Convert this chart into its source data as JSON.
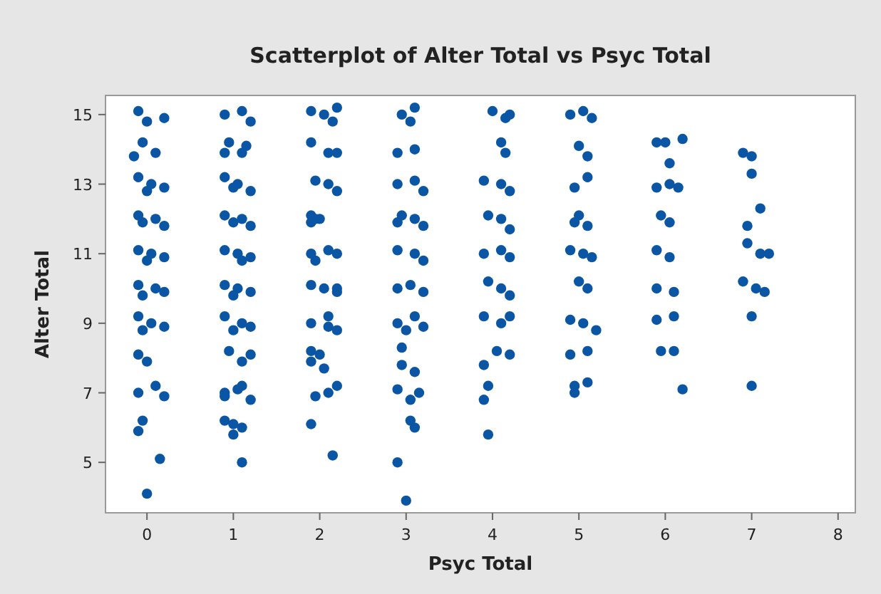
{
  "chart_data": {
    "type": "scatter",
    "title": "Scatterplot of Alter Total vs Psyc Total",
    "xlabel": "Psyc Total",
    "ylabel": "Alter Total",
    "xlim": [
      -0.48,
      8.2
    ],
    "ylim": [
      3.55,
      15.55
    ],
    "xticks": [
      0,
      1,
      2,
      3,
      4,
      5,
      6,
      7,
      8
    ],
    "yticks": [
      5,
      7,
      9,
      11,
      13,
      15
    ],
    "grid": false,
    "marker": "circle",
    "series": [
      {
        "color": "#0b56a4",
        "x": [
          -0.1,
          0.0,
          0.2,
          -0.05,
          0.1,
          -0.15,
          -0.1,
          0.05,
          0.2,
          0.0,
          -0.1,
          0.1,
          0.2,
          -0.05,
          -0.1,
          0.05,
          0.2,
          0.0,
          -0.1,
          0.1,
          0.2,
          -0.05,
          -0.1,
          0.05,
          0.2,
          -0.05,
          -0.1,
          0.0,
          -0.1,
          0.1,
          0.2,
          -0.05,
          -0.1,
          0.15,
          0.0,
          0.9,
          1.1,
          1.2,
          0.95,
          1.1,
          0.9,
          1.15,
          0.9,
          1.05,
          1.2,
          1.0,
          0.9,
          1.1,
          1.2,
          1.0,
          0.9,
          1.05,
          1.2,
          1.1,
          0.9,
          1.05,
          1.2,
          1.0,
          0.9,
          1.1,
          1.2,
          1.0,
          0.95,
          1.1,
          1.2,
          0.9,
          1.1,
          0.9,
          1.2,
          1.0,
          1.1,
          0.9,
          1.0,
          1.1,
          1.05,
          1.9,
          2.05,
          2.2,
          2.15,
          1.9,
          2.1,
          1.95,
          2.1,
          2.2,
          1.9,
          2.0,
          1.9,
          2.1,
          2.2,
          1.95,
          1.9,
          2.05,
          2.2,
          2.1,
          1.9,
          2.1,
          2.2,
          2.0,
          1.9,
          2.05,
          2.2,
          1.95,
          1.9,
          2.15,
          2.1,
          1.9,
          2.2,
          1.95,
          1.9,
          2.2,
          2.95,
          3.1,
          3.05,
          2.9,
          3.1,
          2.9,
          3.1,
          3.2,
          2.95,
          3.1,
          3.2,
          2.9,
          2.9,
          3.1,
          3.2,
          2.9,
          3.05,
          3.2,
          2.9,
          3.1,
          3.2,
          3.0,
          2.95,
          2.95,
          3.1,
          2.9,
          3.05,
          3.05,
          3.1,
          3.15,
          2.9,
          3.0,
          4.0,
          4.15,
          4.2,
          4.1,
          4.15,
          3.9,
          4.1,
          4.2,
          3.95,
          4.1,
          4.2,
          3.9,
          4.1,
          4.2,
          3.95,
          4.1,
          4.2,
          3.9,
          4.1,
          4.2,
          4.05,
          4.2,
          3.9,
          3.95,
          3.9,
          3.95,
          4.9,
          5.05,
          5.15,
          5.0,
          5.1,
          5.1,
          4.95,
          5.0,
          5.1,
          4.95,
          4.9,
          5.05,
          5.15,
          5.0,
          5.1,
          4.9,
          5.05,
          5.2,
          4.9,
          5.1,
          4.95,
          5.1,
          4.95,
          5.9,
          6.0,
          6.2,
          6.05,
          5.9,
          6.05,
          6.15,
          5.95,
          6.05,
          5.9,
          6.05,
          5.9,
          6.1,
          5.9,
          6.1,
          5.95,
          6.1,
          6.2,
          6.9,
          7.0,
          7.0,
          7.1,
          6.95,
          6.95,
          7.1,
          7.2,
          6.9,
          7.05,
          7.15,
          7.0,
          7.0
        ],
        "values": [
          15.1,
          14.8,
          14.9,
          14.2,
          13.9,
          13.8,
          13.2,
          13.0,
          12.9,
          12.8,
          12.1,
          12.0,
          11.8,
          11.9,
          11.1,
          11.0,
          10.9,
          10.8,
          10.1,
          10.0,
          9.9,
          9.8,
          9.2,
          9.0,
          8.9,
          8.8,
          8.1,
          7.9,
          7.0,
          7.2,
          6.9,
          6.2,
          5.9,
          5.1,
          4.1,
          15.0,
          15.1,
          14.8,
          14.2,
          13.9,
          13.9,
          14.1,
          13.2,
          13.0,
          12.8,
          12.9,
          12.1,
          12.0,
          11.8,
          11.9,
          11.1,
          11.0,
          10.9,
          10.8,
          10.1,
          10.0,
          9.9,
          9.8,
          9.2,
          9.0,
          8.9,
          8.8,
          8.2,
          7.9,
          8.1,
          7.0,
          7.2,
          6.9,
          6.8,
          6.1,
          6.0,
          6.2,
          5.8,
          5.0,
          7.1,
          15.1,
          15.0,
          15.2,
          14.8,
          14.2,
          13.9,
          13.1,
          13.0,
          12.8,
          12.1,
          12.0,
          11.9,
          11.1,
          11.0,
          10.8,
          10.1,
          10.0,
          9.9,
          9.2,
          9.0,
          8.9,
          8.8,
          8.1,
          7.9,
          7.7,
          7.2,
          6.9,
          6.1,
          5.2,
          7.0,
          8.2,
          13.9,
          12.0,
          11.0,
          10.0,
          15.0,
          15.2,
          14.8,
          13.9,
          14.0,
          13.0,
          13.1,
          12.8,
          12.1,
          12.0,
          11.8,
          11.9,
          11.1,
          11.0,
          10.8,
          10.0,
          10.1,
          9.9,
          9.0,
          9.2,
          8.9,
          8.8,
          8.3,
          7.8,
          7.6,
          7.1,
          6.8,
          6.2,
          6.0,
          7.0,
          5.0,
          3.9,
          15.1,
          14.9,
          15.0,
          14.2,
          13.9,
          13.1,
          13.0,
          12.8,
          12.1,
          12.0,
          11.7,
          11.0,
          11.1,
          10.9,
          10.2,
          10.0,
          9.8,
          9.2,
          9.0,
          9.2,
          8.2,
          8.1,
          7.8,
          7.2,
          6.8,
          5.8,
          15.0,
          15.1,
          14.9,
          14.1,
          13.8,
          13.2,
          12.9,
          12.1,
          11.8,
          11.9,
          11.1,
          11.0,
          10.9,
          10.2,
          10.0,
          9.1,
          9.0,
          8.8,
          8.1,
          8.2,
          7.2,
          7.3,
          7.0,
          14.2,
          14.2,
          14.3,
          13.6,
          12.9,
          13.0,
          12.9,
          12.1,
          11.9,
          11.1,
          10.9,
          10.0,
          9.9,
          9.1,
          9.2,
          8.2,
          8.2,
          7.1,
          13.9,
          13.8,
          13.3,
          12.3,
          11.8,
          11.3,
          11.0,
          11.0,
          10.2,
          10.0,
          9.9,
          9.2,
          7.2
        ]
      }
    ]
  }
}
